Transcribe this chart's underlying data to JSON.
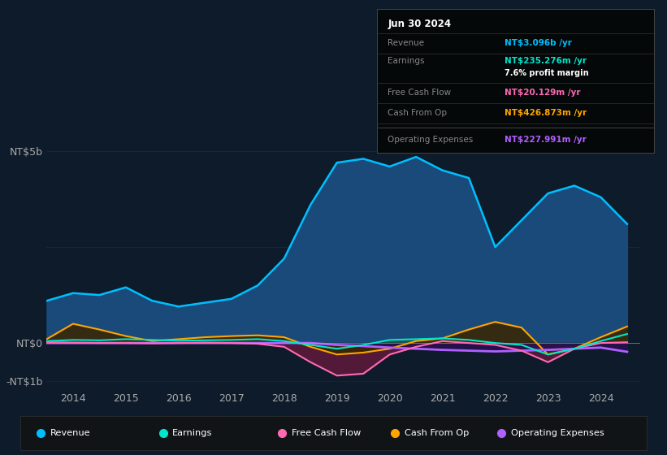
{
  "bg_color": "#0d1b2a",
  "plot_bg": "#0d1b2a",
  "years_x": [
    2013.5,
    2014.0,
    2014.5,
    2015.0,
    2015.5,
    2016.0,
    2016.5,
    2017.0,
    2017.5,
    2018.0,
    2018.5,
    2019.0,
    2019.5,
    2020.0,
    2020.5,
    2021.0,
    2021.5,
    2022.0,
    2022.5,
    2023.0,
    2023.5,
    2024.0,
    2024.5
  ],
  "revenue": [
    1100000000,
    1300000000,
    1250000000,
    1450000000,
    1100000000,
    950000000,
    1050000000,
    1150000000,
    1500000000,
    2200000000,
    3600000000,
    4700000000,
    4800000000,
    4600000000,
    4850000000,
    4500000000,
    4300000000,
    2500000000,
    3200000000,
    3900000000,
    4100000000,
    3800000000,
    3100000000
  ],
  "earnings": [
    50000000,
    80000000,
    70000000,
    100000000,
    80000000,
    60000000,
    70000000,
    80000000,
    100000000,
    50000000,
    -50000000,
    -150000000,
    -50000000,
    80000000,
    100000000,
    120000000,
    80000000,
    0,
    -50000000,
    -300000000,
    -150000000,
    50000000,
    235000000
  ],
  "free_cash_flow": [
    20000000,
    10000000,
    0,
    0,
    -10000000,
    0,
    10000000,
    0,
    -20000000,
    -100000000,
    -500000000,
    -850000000,
    -800000000,
    -300000000,
    -100000000,
    50000000,
    0,
    -50000000,
    -200000000,
    -500000000,
    -150000000,
    0,
    20000000
  ],
  "cash_from_op": [
    100000000,
    500000000,
    350000000,
    180000000,
    50000000,
    100000000,
    150000000,
    180000000,
    200000000,
    150000000,
    -100000000,
    -300000000,
    -250000000,
    -150000000,
    50000000,
    120000000,
    350000000,
    550000000,
    400000000,
    -300000000,
    -150000000,
    150000000,
    430000000
  ],
  "op_expenses": [
    0,
    0,
    0,
    0,
    0,
    0,
    0,
    0,
    0,
    0,
    0,
    -50000000,
    -80000000,
    -120000000,
    -150000000,
    -180000000,
    -200000000,
    -220000000,
    -200000000,
    -180000000,
    -150000000,
    -120000000,
    -230000000
  ],
  "revenue_color": "#00bfff",
  "revenue_fill": "#1a4a7a",
  "earnings_color": "#00e5cc",
  "earnings_fill": "#1a5a50",
  "fcf_color": "#ff69b4",
  "fcf_fill": "#5a1a3a",
  "cashop_color": "#ffa500",
  "cashop_fill": "#3a2500",
  "opex_color": "#b060ff",
  "opex_fill": "#2a1050",
  "legend_items": [
    "Revenue",
    "Earnings",
    "Free Cash Flow",
    "Cash From Op",
    "Operating Expenses"
  ],
  "legend_colors": [
    "#00bfff",
    "#00e5cc",
    "#ff69b4",
    "#ffa500",
    "#b060ff"
  ],
  "info_box": {
    "title": "Jun 30 2024",
    "revenue_label": "Revenue",
    "revenue_value": "NT$3.096b /yr",
    "revenue_color": "#00bfff",
    "earnings_label": "Earnings",
    "earnings_value": "NT$235.276m /yr",
    "earnings_color": "#00e5cc",
    "margin_text": "7.6% profit margin",
    "fcf_label": "Free Cash Flow",
    "fcf_value": "NT$20.129m /yr",
    "fcf_color": "#ff69b4",
    "cashop_label": "Cash From Op",
    "cashop_value": "NT$426.873m /yr",
    "cashop_color": "#ffa500",
    "opex_label": "Operating Expenses",
    "opex_value": "NT$227.991m /yr",
    "opex_color": "#b060ff"
  }
}
